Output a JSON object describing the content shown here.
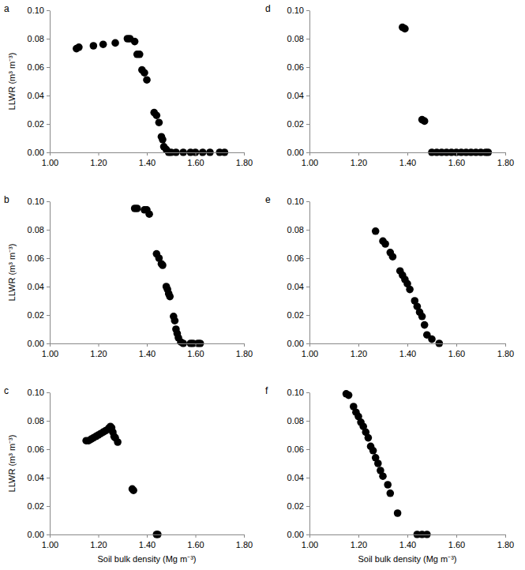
{
  "chart_data": [
    {
      "type": "scatter",
      "title": "a",
      "y_label": "LLWR (m³ m⁻³)",
      "color": "#000000",
      "marker": "circle",
      "grid": false,
      "x": [
        1.11,
        1.12,
        1.18,
        1.22,
        1.27,
        1.32,
        1.33,
        1.35,
        1.36,
        1.37,
        1.38,
        1.39,
        1.4,
        1.43,
        1.44,
        1.45,
        1.46,
        1.465,
        1.47,
        1.48,
        1.49,
        1.5,
        1.52,
        1.55,
        1.58,
        1.6,
        1.63,
        1.66,
        1.7,
        1.72
      ],
      "values": [
        0.073,
        0.074,
        0.075,
        0.076,
        0.077,
        0.08,
        0.08,
        0.078,
        0.069,
        0.069,
        0.058,
        0.056,
        0.051,
        0.028,
        0.026,
        0.021,
        0.011,
        0.009,
        0.004,
        0.002,
        0,
        0,
        0,
        0,
        0,
        0,
        0,
        0,
        0,
        0
      ],
      "xlim": [
        1.0,
        1.8
      ],
      "xticks": [
        {
          "value": 1.0,
          "label": "1.00"
        },
        {
          "value": 1.2,
          "label": "1.20"
        },
        {
          "value": 1.4,
          "label": "1.40"
        },
        {
          "value": 1.6,
          "label": "1.60"
        },
        {
          "value": 1.8,
          "label": "1.80"
        }
      ],
      "ylim": [
        0,
        0.1
      ],
      "yticks": [
        {
          "value": 0,
          "label": "0.00"
        },
        {
          "value": 0.02,
          "label": "0.02"
        },
        {
          "value": 0.04,
          "label": "0.04"
        },
        {
          "value": 0.06,
          "label": "0.06"
        },
        {
          "value": 0.08,
          "label": "0.08"
        },
        {
          "value": 0.1,
          "label": "0.10"
        }
      ]
    },
    {
      "type": "scatter",
      "title": "b",
      "y_label": "LLWR (m³ m⁻³)",
      "color": "#000000",
      "marker": "circle",
      "grid": false,
      "x": [
        1.35,
        1.36,
        1.39,
        1.4,
        1.41,
        1.44,
        1.45,
        1.46,
        1.465,
        1.48,
        1.485,
        1.49,
        1.495,
        1.51,
        1.515,
        1.52,
        1.525,
        1.53,
        1.54,
        1.55,
        1.58,
        1.59,
        1.61,
        1.62
      ],
      "values": [
        0.095,
        0.095,
        0.094,
        0.094,
        0.091,
        0.063,
        0.06,
        0.056,
        0.055,
        0.04,
        0.038,
        0.035,
        0.033,
        0.019,
        0.016,
        0.01,
        0.007,
        0.004,
        0.001,
        0,
        0,
        0,
        0,
        0
      ],
      "xlim": [
        1.0,
        1.8
      ],
      "xticks": [
        {
          "value": 1.0,
          "label": "1.00"
        },
        {
          "value": 1.2,
          "label": "1.20"
        },
        {
          "value": 1.4,
          "label": "1.40"
        },
        {
          "value": 1.6,
          "label": "1.60"
        },
        {
          "value": 1.8,
          "label": "1.80"
        }
      ],
      "ylim": [
        0,
        0.1
      ],
      "yticks": [
        {
          "value": 0,
          "label": "0.00"
        },
        {
          "value": 0.02,
          "label": "0.02"
        },
        {
          "value": 0.04,
          "label": "0.04"
        },
        {
          "value": 0.06,
          "label": "0.06"
        },
        {
          "value": 0.08,
          "label": "0.08"
        },
        {
          "value": 0.1,
          "label": "0.10"
        }
      ]
    },
    {
      "type": "scatter",
      "title": "c",
      "y_label": "LLWR (m³ m⁻³)",
      "x_label": "Soil bulk density (Mg m⁻³)",
      "color": "#000000",
      "marker": "circle",
      "grid": false,
      "x": [
        1.15,
        1.16,
        1.17,
        1.18,
        1.19,
        1.2,
        1.21,
        1.22,
        1.23,
        1.24,
        1.245,
        1.25,
        1.255,
        1.26,
        1.265,
        1.27,
        1.28,
        1.34,
        1.345,
        1.44,
        1.445
      ],
      "values": [
        0.066,
        0.066,
        0.067,
        0.068,
        0.069,
        0.07,
        0.071,
        0.072,
        0.073,
        0.074,
        0.075,
        0.076,
        0.075,
        0.072,
        0.069,
        0.068,
        0.065,
        0.032,
        0.031,
        0,
        0
      ],
      "xlim": [
        1.0,
        1.8
      ],
      "xticks": [
        {
          "value": 1.0,
          "label": "1.00"
        },
        {
          "value": 1.2,
          "label": "1.20"
        },
        {
          "value": 1.4,
          "label": "1.40"
        },
        {
          "value": 1.6,
          "label": "1.60"
        },
        {
          "value": 1.8,
          "label": "1.80"
        }
      ],
      "ylim": [
        0,
        0.1
      ],
      "yticks": [
        {
          "value": 0,
          "label": "0.00"
        },
        {
          "value": 0.02,
          "label": "0.02"
        },
        {
          "value": 0.04,
          "label": "0.04"
        },
        {
          "value": 0.06,
          "label": "0.06"
        },
        {
          "value": 0.08,
          "label": "0.08"
        },
        {
          "value": 0.1,
          "label": "0.10"
        }
      ]
    },
    {
      "type": "scatter",
      "title": "d",
      "color": "#000000",
      "marker": "circle",
      "grid": false,
      "x": [
        1.38,
        1.39,
        1.46,
        1.47,
        1.5,
        1.52,
        1.54,
        1.56,
        1.58,
        1.6,
        1.62,
        1.64,
        1.66,
        1.68,
        1.7,
        1.72,
        1.73
      ],
      "values": [
        0.088,
        0.087,
        0.023,
        0.022,
        0,
        0,
        0,
        0,
        0,
        0,
        0,
        0,
        0,
        0,
        0,
        0,
        0
      ],
      "xlim": [
        1.0,
        1.8
      ],
      "xticks": [
        {
          "value": 1.0,
          "label": "1.00"
        },
        {
          "value": 1.2,
          "label": "1.20"
        },
        {
          "value": 1.4,
          "label": "1.40"
        },
        {
          "value": 1.6,
          "label": "1.60"
        },
        {
          "value": 1.8,
          "label": "1.80"
        }
      ],
      "ylim": [
        0,
        0.1
      ],
      "yticks": [
        {
          "value": 0,
          "label": "0.00"
        },
        {
          "value": 0.02,
          "label": "0.02"
        },
        {
          "value": 0.04,
          "label": "0.04"
        },
        {
          "value": 0.06,
          "label": "0.06"
        },
        {
          "value": 0.08,
          "label": "0.08"
        },
        {
          "value": 0.1,
          "label": "0.10"
        }
      ]
    },
    {
      "type": "scatter",
      "title": "e",
      "color": "#000000",
      "marker": "circle",
      "grid": false,
      "x": [
        1.27,
        1.3,
        1.31,
        1.33,
        1.34,
        1.37,
        1.38,
        1.39,
        1.4,
        1.41,
        1.43,
        1.44,
        1.45,
        1.46,
        1.47,
        1.48,
        1.5,
        1.53
      ],
      "values": [
        0.079,
        0.072,
        0.07,
        0.064,
        0.061,
        0.051,
        0.048,
        0.045,
        0.042,
        0.038,
        0.03,
        0.026,
        0.022,
        0.019,
        0.013,
        0.006,
        0.003,
        0
      ],
      "xlim": [
        1.0,
        1.8
      ],
      "xticks": [
        {
          "value": 1.0,
          "label": "1.00"
        },
        {
          "value": 1.2,
          "label": "1.20"
        },
        {
          "value": 1.4,
          "label": "1.40"
        },
        {
          "value": 1.6,
          "label": "1.60"
        },
        {
          "value": 1.8,
          "label": "1.80"
        }
      ],
      "ylim": [
        0,
        0.1
      ],
      "yticks": [
        {
          "value": 0,
          "label": "0.00"
        },
        {
          "value": 0.02,
          "label": "0.02"
        },
        {
          "value": 0.04,
          "label": "0.04"
        },
        {
          "value": 0.06,
          "label": "0.06"
        },
        {
          "value": 0.08,
          "label": "0.08"
        },
        {
          "value": 0.1,
          "label": "0.10"
        }
      ]
    },
    {
      "type": "scatter",
      "title": "f",
      "x_label": "Soil bulk density (Mg m⁻³)",
      "color": "#000000",
      "marker": "circle",
      "grid": false,
      "x": [
        1.15,
        1.16,
        1.18,
        1.19,
        1.2,
        1.21,
        1.22,
        1.23,
        1.24,
        1.25,
        1.26,
        1.27,
        1.28,
        1.29,
        1.3,
        1.32,
        1.33,
        1.36,
        1.44,
        1.46,
        1.48
      ],
      "values": [
        0.099,
        0.098,
        0.09,
        0.086,
        0.083,
        0.079,
        0.076,
        0.072,
        0.068,
        0.062,
        0.059,
        0.054,
        0.05,
        0.045,
        0.041,
        0.035,
        0.029,
        0.015,
        0,
        0,
        0
      ],
      "xlim": [
        1.0,
        1.8
      ],
      "xticks": [
        {
          "value": 1.0,
          "label": "1.00"
        },
        {
          "value": 1.2,
          "label": "1.20"
        },
        {
          "value": 1.4,
          "label": "1.40"
        },
        {
          "value": 1.6,
          "label": "1.60"
        },
        {
          "value": 1.8,
          "label": "1.80"
        }
      ],
      "ylim": [
        0,
        0.1
      ],
      "yticks": [
        {
          "value": 0,
          "label": "0.00"
        },
        {
          "value": 0.02,
          "label": "0.02"
        },
        {
          "value": 0.04,
          "label": "0.04"
        },
        {
          "value": 0.06,
          "label": "0.06"
        },
        {
          "value": 0.08,
          "label": "0.08"
        },
        {
          "value": 0.1,
          "label": "0.10"
        }
      ]
    }
  ]
}
